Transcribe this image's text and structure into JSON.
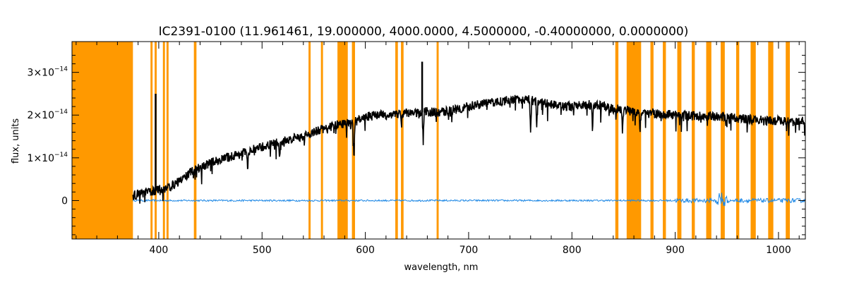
{
  "chart_data": {
    "type": "line",
    "title": "IC2391-0100   (11.961461, 19.000000, 4000.0000, 4.5000000, -0.40000000, 0.0000000)",
    "xlabel": "wavelength, nm",
    "ylabel": "flux, units",
    "xlim": [
      316,
      1026
    ],
    "ylim": [
      -9e-15,
      3.72e-14
    ],
    "x_ticks": [
      {
        "value": 400,
        "label": "400"
      },
      {
        "value": 500,
        "label": "500"
      },
      {
        "value": 600,
        "label": "600"
      },
      {
        "value": 700,
        "label": "700"
      },
      {
        "value": 800,
        "label": "800"
      },
      {
        "value": 900,
        "label": "900"
      },
      {
        "value": 1000,
        "label": "1000"
      }
    ],
    "y_ticks": [
      {
        "value": 0,
        "label": "0",
        "exp": ""
      },
      {
        "value": 1e-14,
        "label": "1×10",
        "exp": "−14"
      },
      {
        "value": 2e-14,
        "label": "2×10",
        "exp": "−14"
      },
      {
        "value": 3e-14,
        "label": "3×10",
        "exp": "−14"
      }
    ],
    "masked_regions": [
      [
        316,
        375
      ],
      [
        392,
        394
      ],
      [
        396,
        398
      ],
      [
        404,
        406
      ],
      [
        407.5,
        409.5
      ],
      [
        434,
        436.5
      ],
      [
        545,
        547
      ],
      [
        557,
        559
      ],
      [
        573,
        583
      ],
      [
        587,
        590
      ],
      [
        629,
        631.5
      ],
      [
        634.5,
        637
      ],
      [
        669,
        671
      ],
      [
        842,
        845
      ],
      [
        853,
        867
      ],
      [
        876,
        879
      ],
      [
        888,
        891
      ],
      [
        902,
        906
      ],
      [
        916,
        919
      ],
      [
        930,
        935
      ],
      [
        944,
        948
      ],
      [
        959,
        962
      ],
      [
        973,
        978
      ],
      [
        990,
        995
      ],
      [
        1007,
        1011
      ]
    ],
    "series": [
      {
        "color": "#000000",
        "x": [
          375,
          380,
          385,
          390,
          395,
          400,
          405,
          410,
          415,
          420,
          425,
          430,
          435,
          440,
          445,
          450,
          455,
          460,
          470,
          480,
          490,
          500,
          510,
          520,
          530,
          540,
          550,
          560,
          570,
          575,
          585,
          590,
          600,
          610,
          620,
          630,
          640,
          650,
          660,
          670,
          680,
          690,
          700,
          710,
          720,
          730,
          740,
          750,
          760,
          770,
          780,
          790,
          800,
          810,
          820,
          830,
          840,
          850,
          870,
          880,
          890,
          900,
          910,
          920,
          930,
          940,
          950,
          960,
          970,
          980,
          990,
          1000,
          1010,
          1020,
          1026
        ],
        "y": [
          1.2e-15,
          1.5e-15,
          1.8e-15,
          2e-15,
          2.2e-15,
          2.5e-15,
          2.8e-15,
          3.2e-15,
          3.8e-15,
          4.5e-15,
          5.5e-15,
          6.5e-15,
          7.2e-15,
          7.8e-15,
          8.3e-15,
          8.8e-15,
          9.2e-15,
          9.6e-15,
          1.03e-14,
          1.1e-14,
          1.18e-14,
          1.25e-14,
          1.32e-14,
          1.38e-14,
          1.45e-14,
          1.5e-14,
          1.6e-14,
          1.68e-14,
          1.75e-14,
          1.78e-14,
          1.8e-14,
          1.85e-14,
          1.95e-14,
          2e-14,
          2e-14,
          2.02e-14,
          2.05e-14,
          2.05e-14,
          2.08e-14,
          2.05e-14,
          2.1e-14,
          2.15e-14,
          2.2e-14,
          2.25e-14,
          2.28e-14,
          2.32e-14,
          2.35e-14,
          2.38e-14,
          2.35e-14,
          2.3e-14,
          2.25e-14,
          2.22e-14,
          2.2e-14,
          2.22e-14,
          2.25e-14,
          2.2e-14,
          2.15e-14,
          2.12e-14,
          2.05e-14,
          2.03e-14,
          2.02e-14,
          2e-14,
          2e-14,
          1.98e-14,
          1.97e-14,
          1.97e-14,
          1.95e-14,
          1.93e-14,
          1.9e-14,
          1.88e-14,
          1.87e-14,
          1.87e-14,
          1.85e-14,
          1.85e-14,
          1.85e-14
        ]
      },
      {
        "color": "#1e88e5",
        "x": [
          375,
          1026
        ],
        "y": [
          0,
          0
        ]
      }
    ],
    "absorption_lines": [
      {
        "x": 486,
        "depth": 5e-15
      },
      {
        "x": 517,
        "depth": 4e-15
      },
      {
        "x": 589,
        "depth": 9e-15
      },
      {
        "x": 656,
        "depth": 7e-15
      },
      {
        "x": 760,
        "depth": 8.5e-15
      },
      {
        "x": 766,
        "depth": 6e-15
      },
      {
        "x": 820,
        "depth": 7e-15
      },
      {
        "x": 849,
        "depth": 5e-15
      },
      {
        "x": 866,
        "depth": 4e-15
      }
    ],
    "emission_spikes": [
      {
        "x": 397,
        "peak": 2.5e-14
      },
      {
        "x": 655,
        "peak": 3.25e-14
      }
    ],
    "colors": {
      "mask": "#ff9900",
      "flux": "#000000",
      "error": "#1e88e5"
    }
  }
}
